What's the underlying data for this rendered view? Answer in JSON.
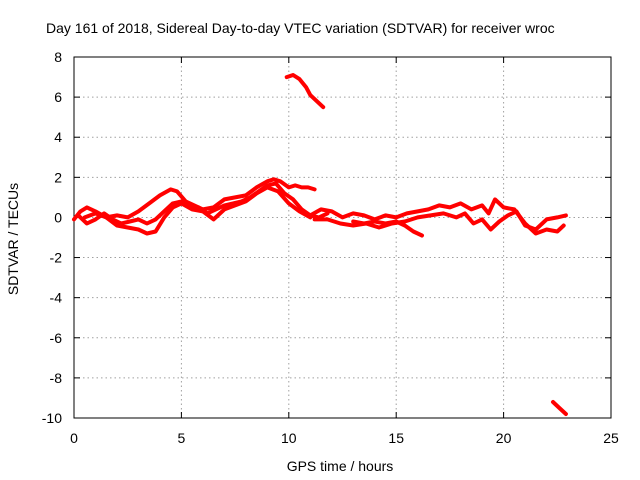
{
  "chart_data": {
    "type": "line",
    "title": "Day 161 of 2018, Sidereal Day-to-day VTEC variation (SDTVAR) for receiver wroc",
    "xlabel": "GPS time / hours",
    "ylabel": "SDTVAR / TECUs",
    "xlim": [
      0,
      25
    ],
    "ylim": [
      -10,
      8
    ],
    "xticks": [
      "0",
      "5",
      "10",
      "15",
      "20",
      "25"
    ],
    "yticks": [
      "8",
      "6",
      "4",
      "2",
      "0",
      "-2",
      "-4",
      "-6",
      "-8",
      "-10"
    ],
    "grid": true,
    "color": "#ff0000",
    "series": [
      {
        "name": "track-1",
        "x": [
          0.0,
          0.3,
          0.6,
          1.0,
          1.5,
          2.0,
          2.5,
          3.0,
          3.5,
          4.0,
          4.5,
          4.8,
          5.2,
          5.6,
          6.0,
          6.5,
          7.0,
          7.5,
          8.0,
          8.5,
          9.0,
          9.3,
          9.6,
          10.0,
          10.3,
          10.6,
          10.9,
          11.2
        ],
        "y": [
          -0.1,
          0.3,
          0.5,
          0.3,
          0.0,
          0.1,
          0.0,
          0.3,
          0.7,
          1.1,
          1.4,
          1.3,
          0.8,
          0.6,
          0.4,
          0.5,
          0.9,
          1.0,
          1.1,
          1.5,
          1.8,
          1.9,
          1.8,
          1.5,
          1.6,
          1.5,
          1.5,
          1.4
        ]
      },
      {
        "name": "track-2",
        "x": [
          0.2,
          0.6,
          1.0,
          1.4,
          1.8,
          2.2,
          2.6,
          3.0,
          3.4,
          3.8,
          4.2,
          4.6,
          5.0,
          5.4,
          5.8,
          6.2,
          6.6,
          7.0,
          7.4,
          7.8,
          8.2,
          8.6,
          9.0,
          9.4,
          9.8,
          10.2,
          10.6,
          11.0,
          11.4,
          11.8
        ],
        "y": [
          0.1,
          -0.3,
          -0.1,
          0.2,
          -0.1,
          -0.3,
          -0.2,
          -0.1,
          -0.3,
          -0.1,
          0.3,
          0.7,
          0.8,
          0.6,
          0.5,
          0.2,
          0.4,
          0.6,
          0.7,
          0.8,
          1.0,
          1.3,
          1.6,
          1.7,
          1.2,
          0.9,
          0.4,
          0.1,
          0.0,
          0.2
        ]
      },
      {
        "name": "track-3",
        "x": [
          0.5,
          1.0,
          1.5,
          2.0,
          2.5,
          3.0,
          3.4,
          3.8,
          4.2,
          4.6,
          5.0,
          5.5,
          6.0,
          6.5,
          7.0,
          7.5,
          8.0,
          8.5,
          9.0,
          9.5,
          10.0,
          10.5,
          11.0
        ],
        "y": [
          0.0,
          0.2,
          0.0,
          -0.4,
          -0.5,
          -0.6,
          -0.8,
          -0.7,
          0.0,
          0.5,
          0.7,
          0.4,
          0.3,
          -0.1,
          0.4,
          0.6,
          0.8,
          1.2,
          1.5,
          1.3,
          0.7,
          0.3,
          0.0
        ]
      },
      {
        "name": "track-4",
        "x": [
          11.0,
          11.5,
          12.0,
          12.5,
          13.0,
          13.5,
          14.0,
          14.5,
          15.0,
          15.5,
          16.0,
          16.5,
          17.0,
          17.5,
          18.0,
          18.5,
          19.0,
          19.3,
          19.6,
          20.0,
          20.5,
          21.0,
          21.5,
          22.0,
          22.5,
          22.8
        ],
        "y": [
          0.1,
          0.4,
          0.3,
          0.0,
          0.2,
          0.1,
          -0.1,
          0.1,
          0.0,
          0.2,
          0.3,
          0.4,
          0.6,
          0.5,
          0.7,
          0.4,
          0.6,
          0.2,
          0.9,
          0.5,
          0.4,
          -0.3,
          -0.8,
          -0.6,
          -0.7,
          -0.4
        ]
      },
      {
        "name": "track-5",
        "x": [
          11.2,
          11.8,
          12.4,
          13.0,
          13.6,
          14.2,
          14.8,
          15.4,
          16.0,
          16.6,
          17.2,
          17.8,
          18.2,
          18.6,
          19.0,
          19.4,
          19.8,
          20.2,
          20.6,
          21.0,
          21.5,
          22.0,
          22.5,
          22.9
        ],
        "y": [
          -0.1,
          -0.1,
          -0.3,
          -0.4,
          -0.3,
          -0.5,
          -0.3,
          -0.2,
          0.0,
          0.1,
          0.2,
          0.0,
          0.2,
          -0.3,
          -0.1,
          -0.6,
          -0.2,
          0.1,
          0.3,
          -0.4,
          -0.6,
          -0.1,
          0.0,
          0.1
        ]
      },
      {
        "name": "track-6",
        "x": [
          13.0,
          13.5,
          14.0,
          14.5,
          15.0,
          15.4,
          15.8,
          16.2
        ],
        "y": [
          -0.2,
          -0.3,
          -0.2,
          -0.3,
          -0.2,
          -0.4,
          -0.7,
          -0.9
        ]
      },
      {
        "name": "track-7",
        "x": [
          9.9,
          10.2,
          10.5,
          10.8,
          11.0,
          11.3,
          11.6
        ],
        "y": [
          7.0,
          7.1,
          6.9,
          6.5,
          6.1,
          5.8,
          5.5
        ]
      },
      {
        "name": "track-8",
        "x": [
          22.3,
          22.6,
          22.9
        ],
        "y": [
          -9.2,
          -9.5,
          -9.8
        ]
      }
    ]
  }
}
